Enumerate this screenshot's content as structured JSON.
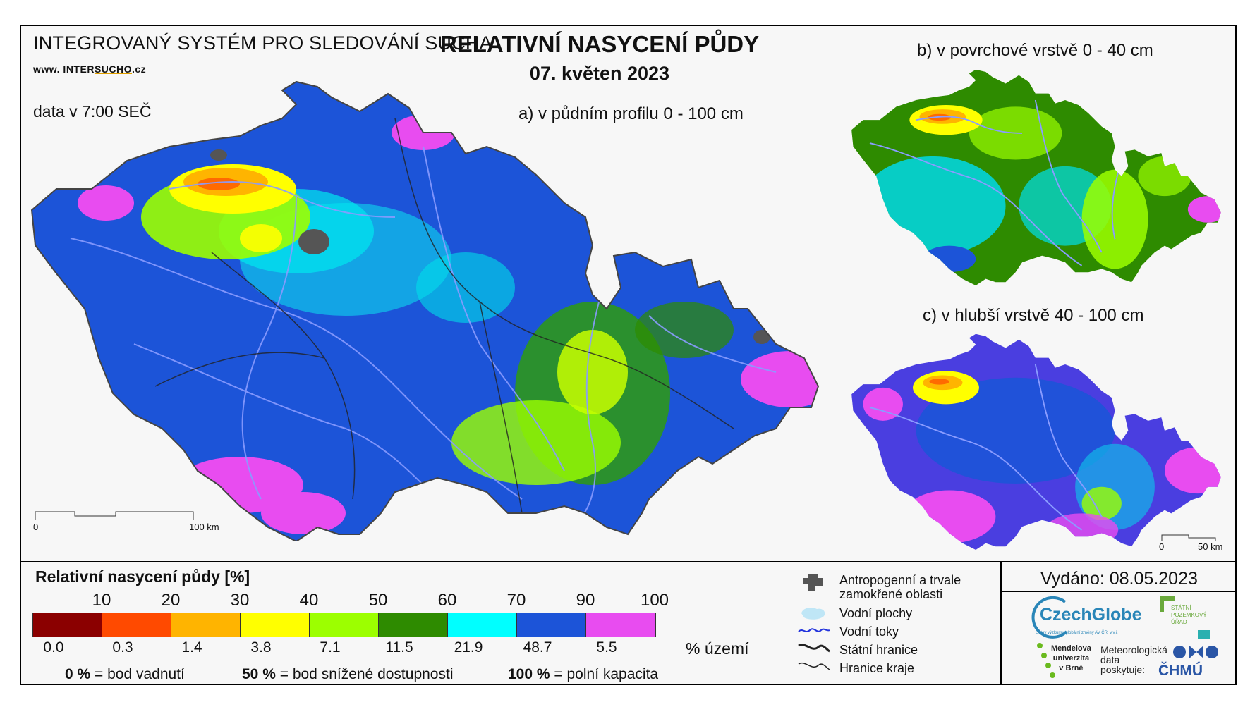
{
  "header": {
    "system": "INTEGROVANÝ SYSTÉM PRO SLEDOVÁNÍ SUCHA",
    "website_prefix": "www. INTER",
    "website_highlight": "SUCHO",
    "website_suffix": ".cz",
    "data_time": "data v 7:00 SEČ",
    "title": "RELATIVNÍ NASYCENÍ PŮDY",
    "date": "07. květen 2023"
  },
  "maps": {
    "a_label": "a) v půdním profilu 0 - 100 cm",
    "b_label": "b) v povrchové vrstvě 0 - 40 cm",
    "c_label": "c) v hlubší vrstvě 40 - 100 cm",
    "scale_main": {
      "start": "0",
      "end": "100 km"
    },
    "scale_small": {
      "start": "0",
      "end": "50 km"
    }
  },
  "legend": {
    "title": "Relativní nasycení půdy [%]",
    "ticks": [
      "10",
      "20",
      "30",
      "40",
      "50",
      "60",
      "70",
      "90",
      "100"
    ],
    "colors": [
      "#8b0000",
      "#ff4a00",
      "#ffb400",
      "#ffff00",
      "#9cff00",
      "#2e8b00",
      "#00ffff",
      "#1c54d8",
      "#e84cf0"
    ],
    "shares": [
      "0.0",
      "0.3",
      "1.4",
      "3.8",
      "7.1",
      "11.5",
      "21.9",
      "48.7",
      "5.5"
    ],
    "share_unit": "% území",
    "notes": [
      {
        "value": "0 %",
        "text": "= bod vadnutí"
      },
      {
        "value": "50 %",
        "text": "= bod snížené dostupnosti"
      },
      {
        "value": "100 %",
        "text": "= polní kapacita"
      }
    ]
  },
  "symbols": {
    "anthropogenic": "Antropogenní a trvale zamokřené oblasti",
    "water_bodies": "Vodní plochy",
    "rivers": "Vodní toky",
    "state_border": "Státní hranice",
    "region_border": "Hranice kraje"
  },
  "credits": {
    "issued": "Vydáno: 08.05.2023",
    "czechglobe": "CzechGlobe",
    "czechglobe_sub": "Ústav výzkumu globální změny AV ČR, v.v.i.",
    "spu": [
      "STÁTNÍ",
      "POZEMKOVÝ",
      "ÚŘAD"
    ],
    "mendel": [
      "Mendelova",
      "univerzita",
      "v Brně"
    ],
    "meteo": [
      "Meteorologická",
      "data",
      "poskytuje:"
    ],
    "chmu": "ČHMÚ"
  },
  "colors": {
    "blue": "#1c54d8",
    "cyan": "#00ffff",
    "magenta": "#e84cf0",
    "lightgreen": "#9cff00",
    "darkgreen": "#2e8b00",
    "yellow": "#ffff00",
    "orange": "#ffb400",
    "red": "#ff4a00",
    "river": "#6a7dff"
  }
}
